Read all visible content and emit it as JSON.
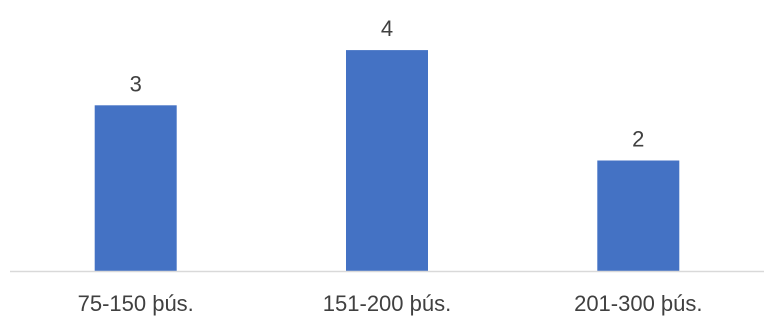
{
  "chart_data": {
    "type": "bar",
    "categories": [
      "75-150 þús.",
      "151-200 þús.",
      "201-300 þús."
    ],
    "values": [
      3,
      4,
      2
    ],
    "ylim": [
      0,
      4.4
    ],
    "grid": false,
    "legend": "none",
    "bar_color": "#4472C4",
    "axis_color": "#D9D9D9",
    "label_color": "#404040",
    "show_data_labels": true
  }
}
